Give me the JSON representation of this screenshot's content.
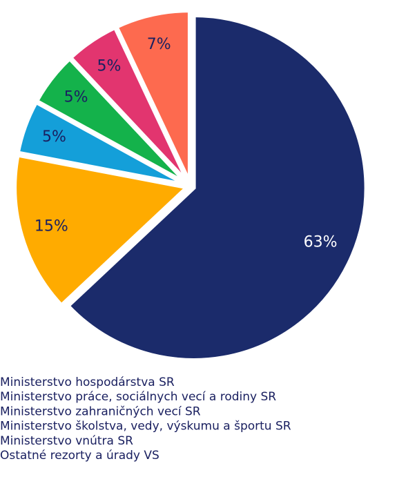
{
  "chart_data": {
    "type": "pie",
    "categories": [
      "Ministerstvo hospodárstva SR",
      "Ministerstvo práce, sociálnych vecí a rodiny SR",
      "Ministerstvo zahraničných vecí SR",
      "Ministerstvo školstva, vedy, výskumu a športu SR",
      "Ministerstvo vnútra SR",
      "Ostatné rezorty a úrady VS"
    ],
    "values": [
      63,
      15,
      5,
      5,
      5,
      7
    ],
    "value_labels": [
      "63%",
      "15%",
      "5%",
      "5%",
      "5%",
      "7%"
    ],
    "colors": [
      "#1b2b6b",
      "#ffab00",
      "#149fd9",
      "#14b24b",
      "#e2356f",
      "#fd6a4f"
    ],
    "legend": "bottom"
  }
}
